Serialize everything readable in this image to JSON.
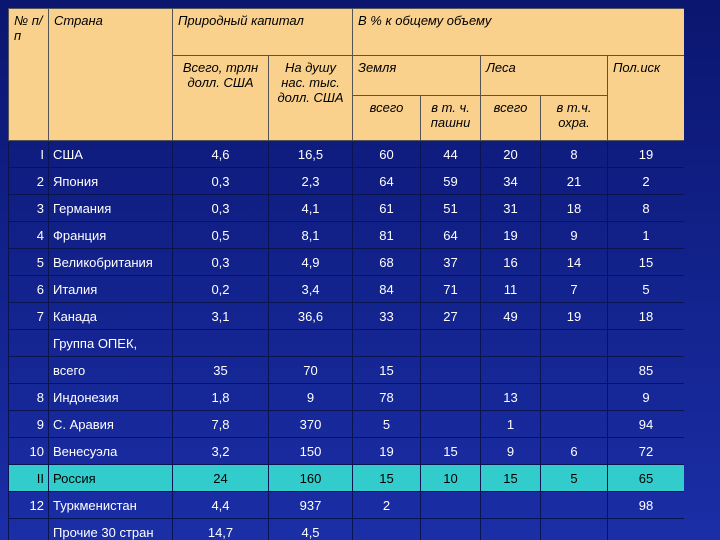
{
  "header": {
    "num": "№ п/п",
    "country": "Страна",
    "capital": "Природный капитал",
    "share": "В % к  общему объему",
    "total": "Всего, трлн долл. США",
    "per_capita": "На душу нас. тыс. долл. США",
    "land": "Земля",
    "forest": "Леса",
    "minerals": "Пол.иск",
    "land_total": "всего",
    "land_arable": "в т. ч. пашни",
    "forest_total": "всего",
    "forest_protected": "в т.ч. охра."
  },
  "table": {
    "rows": [
      [
        "I",
        "США",
        "4,6",
        "16,5",
        "60",
        "44",
        "20",
        "8",
        "19"
      ],
      [
        "2",
        "Япония",
        "0,3",
        "2,3",
        "64",
        "59",
        "34",
        "21",
        "2"
      ],
      [
        "3",
        "Германия",
        "0,3",
        "4,1",
        "61",
        "51",
        "31",
        "18",
        "8"
      ],
      [
        "4",
        "Франция",
        "0,5",
        "8,1",
        "81",
        "64",
        "19",
        "9",
        "1"
      ],
      [
        "5",
        "Великобритания",
        "0,3",
        "4,9",
        "68",
        "37",
        "16",
        "14",
        "15"
      ],
      [
        "6",
        "Италия",
        "0,2",
        "3,4",
        "84",
        "71",
        "11",
        "7",
        "5"
      ],
      [
        "7",
        "Канада",
        "3,1",
        "36,6",
        "33",
        "27",
        "49",
        "19",
        "18"
      ],
      [
        null,
        "Группа ОПЕК,",
        null,
        null,
        null,
        null,
        null,
        null,
        null
      ],
      [
        null,
        "всего",
        "35",
        "70",
        "15",
        null,
        null,
        null,
        "85"
      ],
      [
        "8",
        "Индонезия",
        "1,8",
        "9",
        "78",
        null,
        "13",
        null,
        "9"
      ],
      [
        "9",
        "С. Аравия",
        "7,8",
        "370",
        "5",
        null,
        "1",
        null,
        "94"
      ],
      [
        "10",
        "Венесуэла",
        "3,2",
        "150",
        "19",
        "15",
        "9",
        "6",
        "72"
      ],
      [
        "II",
        "Россия",
        "24",
        "160",
        "15",
        "10",
        "15",
        "5",
        "65"
      ],
      [
        "12",
        "Туркменистан",
        "4,4",
        "937",
        "2",
        null,
        null,
        null,
        "98"
      ],
      [
        null,
        "Прочие 30 стран",
        "14,7",
        "4,5",
        null,
        null,
        null,
        null,
        null
      ]
    ]
  }
}
